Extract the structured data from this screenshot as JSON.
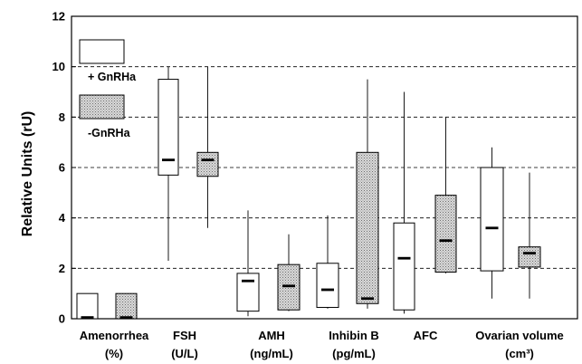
{
  "chart_data": {
    "type": "boxplot",
    "title": "",
    "ylabel": "Relative Units (rU)",
    "xlabel": "",
    "ylim": [
      0,
      12
    ],
    "yticks": [
      0,
      2,
      4,
      6,
      8,
      10,
      12
    ],
    "grid": "dashed horizontal lines at 2, 4, 6, 8, 10",
    "legend_placement": "top-left",
    "colors": {
      "with_gnrha": "#ffffff",
      "without_gnrha": "#cfcfcf",
      "outline": "#000000"
    },
    "categories": [
      {
        "label_line1": "Amenorrhea",
        "label_line2": "(%)"
      },
      {
        "label_line1": "FSH",
        "label_line2": "(U/L)"
      },
      {
        "label_line1": "AMH",
        "label_line2": "(ng/mL)"
      },
      {
        "label_line1": "Inhibin B",
        "label_line2": "(pg/mL)"
      },
      {
        "label_line1": "AFC",
        "label_line2": ""
      },
      {
        "label_line1": "Ovarian volume",
        "label_line2": "(cm³)"
      }
    ],
    "series": [
      {
        "name": "+ GnRHa",
        "pattern": "white",
        "boxes": [
          {
            "category": 0,
            "q1": 0.0,
            "median": 0.05,
            "q3": 1.0
          },
          {
            "category": 1,
            "min": 2.3,
            "q1": 5.7,
            "median": 6.3,
            "q3": 9.5,
            "max": 10.0
          },
          {
            "category": 2,
            "min": 0.1,
            "q1": 0.3,
            "median": 1.5,
            "q3": 1.8,
            "max": 4.3
          },
          {
            "category": 3,
            "min": 0.4,
            "q1": 0.45,
            "median": 1.15,
            "q3": 2.2,
            "max": 4.1
          },
          {
            "category": 4,
            "min": 0.2,
            "q1": 0.35,
            "median": 2.4,
            "q3": 3.8,
            "max": 9.0
          },
          {
            "category": 5,
            "min": 0.8,
            "q1": 1.9,
            "median": 3.6,
            "q3": 6.0,
            "max": 6.8
          }
        ]
      },
      {
        "name": "-GnRHa",
        "pattern": "stippled",
        "boxes": [
          {
            "category": 0,
            "q1": 0.0,
            "median": 0.05,
            "q3": 1.0
          },
          {
            "category": 1,
            "min": 3.6,
            "q1": 5.65,
            "median": 6.3,
            "q3": 6.6,
            "max": 10.0
          },
          {
            "category": 2,
            "min": 0.3,
            "q1": 0.35,
            "median": 1.3,
            "q3": 2.15,
            "max": 3.35
          },
          {
            "category": 3,
            "min": 0.4,
            "q1": 0.6,
            "median": 0.8,
            "q3": 6.6,
            "max": 9.5
          },
          {
            "category": 4,
            "min": 1.8,
            "q1": 1.85,
            "median": 3.1,
            "q3": 4.9,
            "max": 8.0
          },
          {
            "category": 5,
            "min": 0.8,
            "q1": 2.05,
            "median": 2.6,
            "q3": 2.85,
            "max": 5.8
          }
        ]
      }
    ],
    "legend": [
      {
        "label": "+ GnRHa",
        "pattern": "white"
      },
      {
        "label": "-GnRHa",
        "pattern": "stippled"
      }
    ]
  }
}
